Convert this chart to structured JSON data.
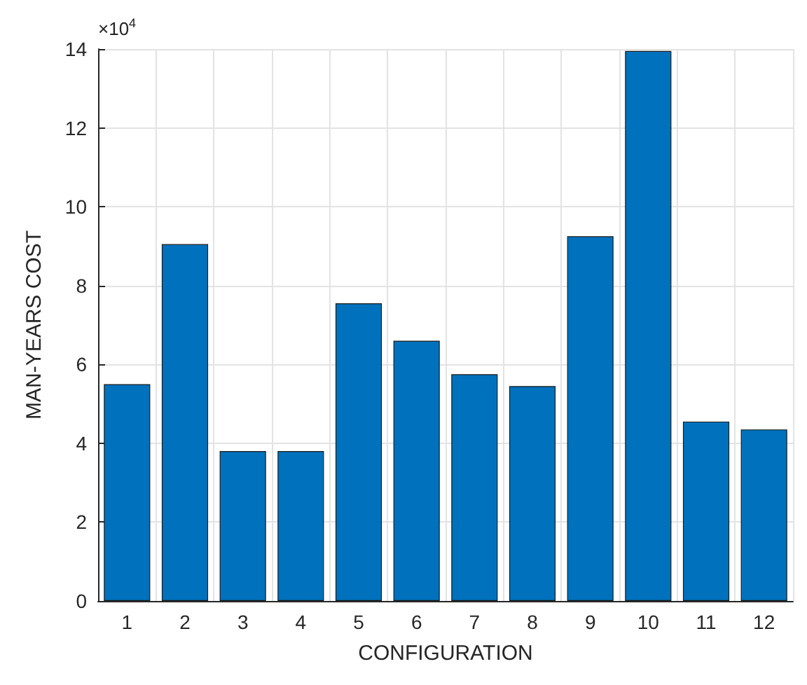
{
  "chart_data": {
    "type": "bar",
    "xlabel": "CONFIGURATION",
    "ylabel": "MAN-YEARS COST",
    "annotations": [
      "×10$^{4}$"
    ],
    "categories": [
      "1",
      "2",
      "3",
      "4",
      "5",
      "6",
      "7",
      "8",
      "9",
      "10",
      "11",
      "12"
    ],
    "values": [
      5.5,
      9.05,
      3.8,
      3.8,
      7.55,
      6.6,
      5.75,
      5.45,
      9.25,
      13.95,
      4.55,
      4.35
    ],
    "color": "#0072bd",
    "ylim": [
      0,
      14
    ],
    "yticks": [
      0,
      2,
      4,
      6,
      8,
      10,
      12,
      14
    ],
    "grid": true
  }
}
